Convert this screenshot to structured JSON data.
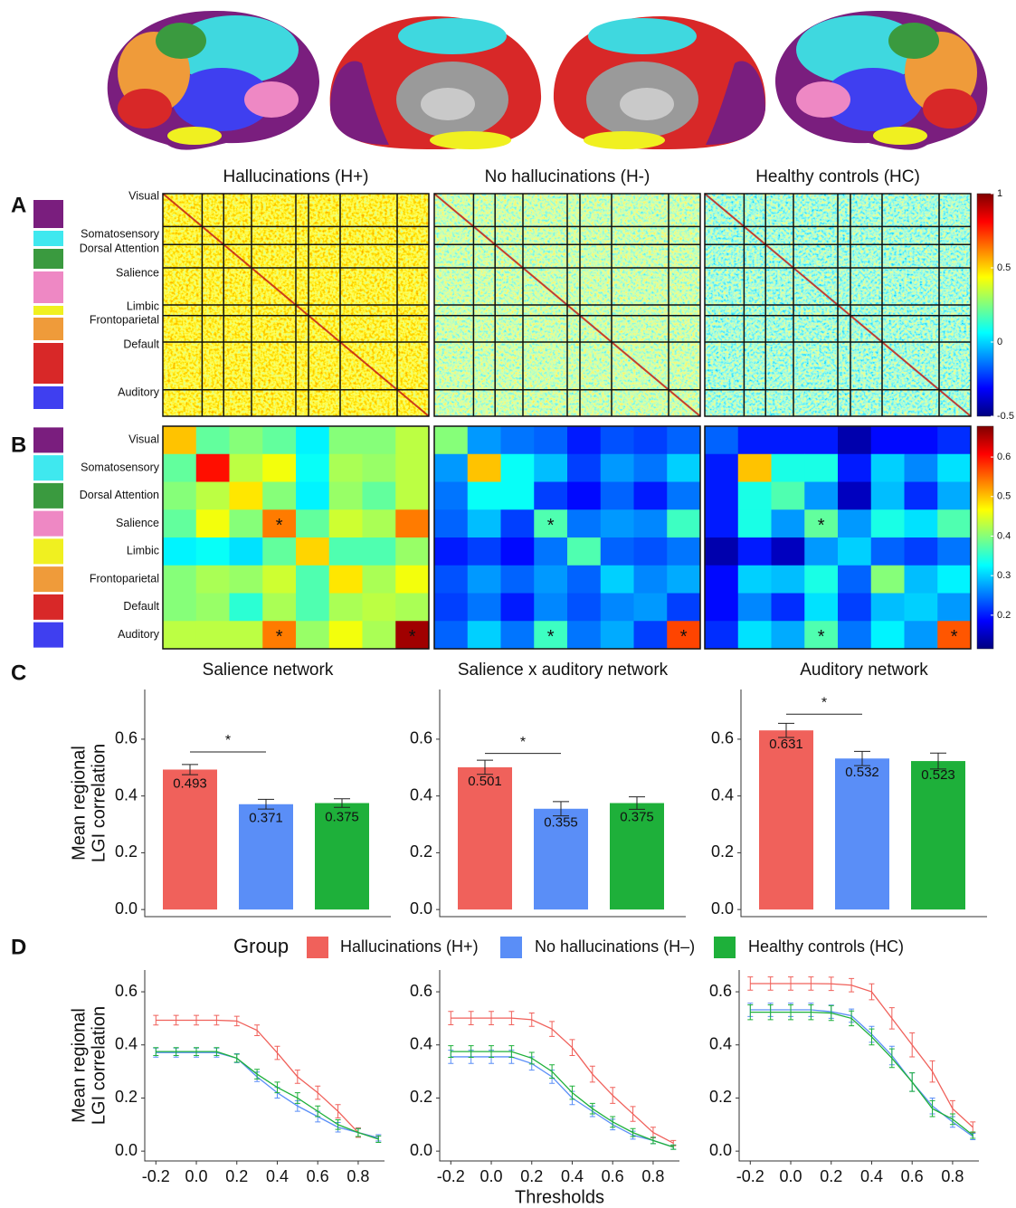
{
  "panel_labels": [
    "A",
    "B",
    "C",
    "D"
  ],
  "groups": [
    "Hallucinations (H+)",
    "No hallucinations (H-)",
    "Healthy controls (HC)"
  ],
  "networks": [
    {
      "name": "Visual",
      "color": "#7a1e7e"
    },
    {
      "name": "Somatosensory",
      "color": "#3fe8ef"
    },
    {
      "name": "Dorsal Attention",
      "color": "#3a9a3f"
    },
    {
      "name": "Salience",
      "color": "#ee88c4"
    },
    {
      "name": "Limbic",
      "color": "#f0f020"
    },
    {
      "name": "Frontoparietal",
      "color": "#ef9b3a"
    },
    {
      "name": "Default",
      "color": "#d82828"
    },
    {
      "name": "Auditory",
      "color": "#3f3ff0"
    }
  ],
  "matrix_scale": {
    "zlim": [
      -0.5,
      1
    ],
    "zticks": [
      1,
      0.5,
      0,
      -0.5
    ]
  },
  "heatmap_scale": {
    "zlim": [
      0.115,
      0.678
    ],
    "zticks": [
      0.6,
      0.5,
      0.4,
      0.3,
      0.2
    ]
  },
  "legend": {
    "title": "Group"
  },
  "chart_data": [
    {
      "type": "heatmap",
      "values": [
        [
          0.5,
          0.38,
          0.4,
          0.38,
          0.32,
          0.4,
          0.4,
          0.43
        ],
        [
          0.38,
          0.6,
          0.43,
          0.46,
          0.33,
          0.42,
          0.41,
          0.43
        ],
        [
          0.4,
          0.43,
          0.48,
          0.4,
          0.32,
          0.41,
          0.38,
          0.43
        ],
        [
          0.38,
          0.46,
          0.4,
          0.54,
          0.38,
          0.44,
          0.42,
          0.54
        ],
        [
          0.32,
          0.33,
          0.31,
          0.38,
          0.49,
          0.37,
          0.37,
          0.41
        ],
        [
          0.4,
          0.42,
          0.41,
          0.44,
          0.37,
          0.48,
          0.42,
          0.46
        ],
        [
          0.4,
          0.41,
          0.35,
          0.42,
          0.37,
          0.42,
          0.43,
          0.42
        ],
        [
          0.43,
          0.43,
          0.43,
          0.54,
          0.41,
          0.46,
          0.42,
          0.66
        ]
      ],
      "annotations": [
        {
          "row": 3,
          "col": 3,
          "label": "*"
        },
        {
          "row": 7,
          "col": 3,
          "label": "*"
        },
        {
          "row": 7,
          "col": 7,
          "label": "*"
        }
      ]
    },
    {
      "type": "heatmap",
      "values": [
        [
          0.4,
          0.27,
          0.25,
          0.24,
          0.2,
          0.23,
          0.22,
          0.24
        ],
        [
          0.27,
          0.5,
          0.33,
          0.29,
          0.22,
          0.27,
          0.25,
          0.3
        ],
        [
          0.25,
          0.33,
          0.33,
          0.22,
          0.19,
          0.24,
          0.2,
          0.25
        ],
        [
          0.24,
          0.29,
          0.22,
          0.37,
          0.25,
          0.27,
          0.26,
          0.36
        ],
        [
          0.2,
          0.22,
          0.19,
          0.25,
          0.37,
          0.24,
          0.23,
          0.25
        ],
        [
          0.23,
          0.27,
          0.24,
          0.27,
          0.24,
          0.3,
          0.26,
          0.28
        ],
        [
          0.22,
          0.25,
          0.2,
          0.26,
          0.23,
          0.26,
          0.27,
          0.22
        ],
        [
          0.24,
          0.3,
          0.25,
          0.36,
          0.25,
          0.28,
          0.22,
          0.57
        ]
      ],
      "annotations": [
        {
          "row": 3,
          "col": 3,
          "label": "*"
        },
        {
          "row": 7,
          "col": 3,
          "label": "*"
        },
        {
          "row": 7,
          "col": 7,
          "label": "*"
        }
      ]
    },
    {
      "type": "heatmap",
      "values": [
        [
          0.24,
          0.2,
          0.2,
          0.2,
          0.14,
          0.19,
          0.19,
          0.21
        ],
        [
          0.2,
          0.5,
          0.34,
          0.34,
          0.2,
          0.3,
          0.26,
          0.31
        ],
        [
          0.2,
          0.34,
          0.37,
          0.27,
          0.15,
          0.29,
          0.21,
          0.28
        ],
        [
          0.2,
          0.34,
          0.27,
          0.38,
          0.27,
          0.34,
          0.31,
          0.37
        ],
        [
          0.14,
          0.2,
          0.15,
          0.27,
          0.3,
          0.24,
          0.22,
          0.25
        ],
        [
          0.19,
          0.3,
          0.29,
          0.34,
          0.24,
          0.4,
          0.29,
          0.32
        ],
        [
          0.19,
          0.26,
          0.21,
          0.31,
          0.22,
          0.29,
          0.3,
          0.27
        ],
        [
          0.21,
          0.31,
          0.28,
          0.37,
          0.25,
          0.32,
          0.27,
          0.56
        ]
      ],
      "annotations": [
        {
          "row": 3,
          "col": 3,
          "label": "*"
        },
        {
          "row": 7,
          "col": 3,
          "label": "*"
        },
        {
          "row": 7,
          "col": 7,
          "label": "*"
        }
      ]
    },
    {
      "type": "bar",
      "title": "Salience network",
      "ylabel": [
        "Mean regional",
        "LGI correlation"
      ],
      "values": [
        0.493,
        0.371,
        0.375
      ],
      "errors": [
        0.018,
        0.017,
        0.015
      ],
      "colors": [
        "#f0615b",
        "#5a8ef7",
        "#1eb03a"
      ],
      "significance": {
        "label": "*",
        "pair": [
          0,
          1
        ],
        "y": 0.555
      },
      "ylim": [
        -0.025,
        0.775
      ],
      "yticks": [
        {
          "value": 0,
          "label": "0.0"
        },
        0.2,
        0.4,
        0.6
      ]
    },
    {
      "type": "bar",
      "title": "Salience x auditory network",
      "values": [
        0.501,
        0.355,
        0.375
      ],
      "errors": [
        0.025,
        0.025,
        0.022
      ],
      "colors": [
        "#f0615b",
        "#5a8ef7",
        "#1eb03a"
      ],
      "significance": {
        "label": "*",
        "pair": [
          0,
          1
        ],
        "y": 0.55
      },
      "ylim": [
        -0.025,
        0.775
      ],
      "yticks": [
        {
          "value": 0,
          "label": "0.0"
        },
        0.2,
        0.4,
        0.6
      ]
    },
    {
      "type": "bar",
      "title": "Auditory network",
      "values": [
        0.631,
        0.532,
        0.523
      ],
      "errors": [
        0.025,
        0.025,
        0.028
      ],
      "colors": [
        "#f0615b",
        "#5a8ef7",
        "#1eb03a"
      ],
      "significance": {
        "label": "*",
        "pair": [
          0,
          1
        ],
        "y": 0.688
      },
      "ylim": [
        -0.025,
        0.775
      ],
      "yticks": [
        {
          "value": 0,
          "label": "0.0"
        },
        0.2,
        0.4,
        0.6
      ]
    },
    {
      "type": "line",
      "ylabel": [
        "Mean regional",
        "LGI correlation"
      ],
      "x": [
        -0.2,
        -0.1,
        0,
        0.1,
        0.2,
        0.3,
        0.4,
        0.5,
        0.6,
        0.7,
        0.8,
        0.9
      ],
      "series": [
        {
          "name": "Hallucinations (H+)",
          "color": "#f0615b",
          "values": [
            0.493,
            0.493,
            0.493,
            0.493,
            0.49,
            0.455,
            0.37,
            0.28,
            0.22,
            0.15,
            0.07,
            0.05
          ],
          "errors": [
            0.018,
            0.018,
            0.018,
            0.018,
            0.018,
            0.02,
            0.025,
            0.025,
            0.025,
            0.025,
            0.018,
            0.012
          ]
        },
        {
          "name": "No hallucinations (H–)",
          "color": "#5a8ef7",
          "values": [
            0.371,
            0.371,
            0.371,
            0.371,
            0.35,
            0.28,
            0.22,
            0.17,
            0.13,
            0.09,
            0.07,
            0.05
          ],
          "errors": [
            0.017,
            0.017,
            0.017,
            0.017,
            0.017,
            0.018,
            0.02,
            0.02,
            0.02,
            0.018,
            0.015,
            0.012
          ]
        },
        {
          "name": "Healthy controls (HC)",
          "color": "#1eb03a",
          "values": [
            0.375,
            0.375,
            0.375,
            0.375,
            0.35,
            0.29,
            0.24,
            0.2,
            0.15,
            0.1,
            0.07,
            0.045
          ],
          "errors": [
            0.015,
            0.015,
            0.015,
            0.015,
            0.015,
            0.018,
            0.02,
            0.02,
            0.02,
            0.018,
            0.015,
            0.012
          ]
        }
      ],
      "xlim": [
        -0.255,
        0.93
      ],
      "xticks": [
        -0.2,
        {
          "value": 0,
          "label": "0.0"
        },
        0.2,
        0.4,
        0.6,
        0.8
      ],
      "ylim": [
        -0.037,
        0.682
      ],
      "yticks": [
        {
          "value": 0,
          "label": "0.0"
        },
        0.2,
        0.4,
        0.6
      ]
    },
    {
      "type": "line",
      "xlabel": "Thresholds",
      "x": [
        -0.2,
        -0.1,
        0,
        0.1,
        0.2,
        0.3,
        0.4,
        0.5,
        0.6,
        0.7,
        0.8,
        0.9
      ],
      "series": [
        {
          "name": "Hallucinations (H+)",
          "color": "#f0615b",
          "values": [
            0.501,
            0.501,
            0.501,
            0.501,
            0.495,
            0.46,
            0.39,
            0.29,
            0.21,
            0.14,
            0.07,
            0.03
          ],
          "errors": [
            0.025,
            0.025,
            0.025,
            0.025,
            0.025,
            0.028,
            0.03,
            0.03,
            0.03,
            0.028,
            0.02,
            0.01
          ]
        },
        {
          "name": "No hallucinations (H–)",
          "color": "#5a8ef7",
          "values": [
            0.355,
            0.355,
            0.355,
            0.355,
            0.33,
            0.28,
            0.2,
            0.15,
            0.1,
            0.06,
            0.04,
            0.015
          ],
          "errors": [
            0.025,
            0.025,
            0.025,
            0.025,
            0.025,
            0.025,
            0.025,
            0.02,
            0.02,
            0.015,
            0.012,
            0.008
          ]
        },
        {
          "name": "Healthy controls (HC)",
          "color": "#1eb03a",
          "values": [
            0.375,
            0.375,
            0.375,
            0.375,
            0.35,
            0.3,
            0.22,
            0.16,
            0.11,
            0.07,
            0.04,
            0.015
          ],
          "errors": [
            0.022,
            0.022,
            0.022,
            0.022,
            0.022,
            0.025,
            0.025,
            0.02,
            0.02,
            0.015,
            0.012,
            0.008
          ]
        }
      ],
      "xlim": [
        -0.255,
        0.93
      ],
      "xticks": [
        -0.2,
        {
          "value": 0,
          "label": "0.0"
        },
        0.2,
        0.4,
        0.6,
        0.8
      ],
      "ylim": [
        -0.037,
        0.682
      ],
      "yticks": [
        {
          "value": 0,
          "label": "0.0"
        },
        0.2,
        0.4,
        0.6
      ]
    },
    {
      "type": "line",
      "x": [
        -0.2,
        -0.1,
        0,
        0.1,
        0.2,
        0.3,
        0.4,
        0.5,
        0.6,
        0.7,
        0.8,
        0.9
      ],
      "series": [
        {
          "name": "Hallucinations (H+)",
          "color": "#f0615b",
          "values": [
            0.631,
            0.631,
            0.631,
            0.631,
            0.63,
            0.625,
            0.6,
            0.5,
            0.4,
            0.3,
            0.16,
            0.09
          ],
          "errors": [
            0.025,
            0.025,
            0.025,
            0.025,
            0.025,
            0.025,
            0.03,
            0.04,
            0.045,
            0.04,
            0.03,
            0.02
          ]
        },
        {
          "name": "No hallucinations (H–)",
          "color": "#5a8ef7",
          "values": [
            0.532,
            0.532,
            0.532,
            0.532,
            0.525,
            0.51,
            0.44,
            0.36,
            0.26,
            0.17,
            0.11,
            0.055
          ],
          "errors": [
            0.025,
            0.025,
            0.025,
            0.025,
            0.025,
            0.025,
            0.03,
            0.035,
            0.035,
            0.03,
            0.02,
            0.012
          ]
        },
        {
          "name": "Healthy controls (HC)",
          "color": "#1eb03a",
          "values": [
            0.523,
            0.523,
            0.523,
            0.523,
            0.52,
            0.5,
            0.43,
            0.35,
            0.26,
            0.16,
            0.12,
            0.06
          ],
          "errors": [
            0.028,
            0.028,
            0.028,
            0.028,
            0.028,
            0.028,
            0.03,
            0.035,
            0.035,
            0.03,
            0.02,
            0.012
          ]
        }
      ],
      "xlim": [
        -0.255,
        0.93
      ],
      "xticks": [
        -0.2,
        {
          "value": 0,
          "label": "0.0"
        },
        0.2,
        0.4,
        0.6,
        0.8
      ],
      "ylim": [
        -0.037,
        0.682
      ],
      "yticks": [
        {
          "value": 0,
          "label": "0.0"
        },
        0.2,
        0.4,
        0.6
      ]
    }
  ]
}
